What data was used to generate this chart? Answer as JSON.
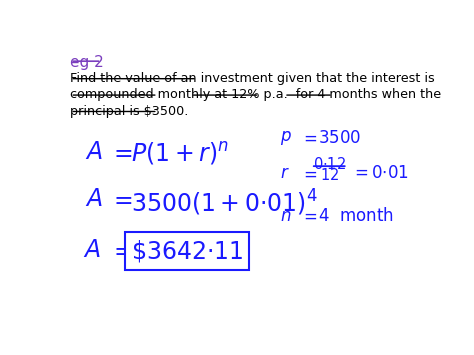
{
  "bg_color": "#ffffff",
  "title_color": "#7B3FBE",
  "text_color": "#1a1aff",
  "body_text_color": "#000000",
  "title": "eg 2",
  "line1": "Find the value of an investment given that the interest is",
  "line2": "compounded monthly at 12% p.a.  for 4 months when the",
  "line3": "principal is $3500.",
  "math_color": "#3333cc"
}
